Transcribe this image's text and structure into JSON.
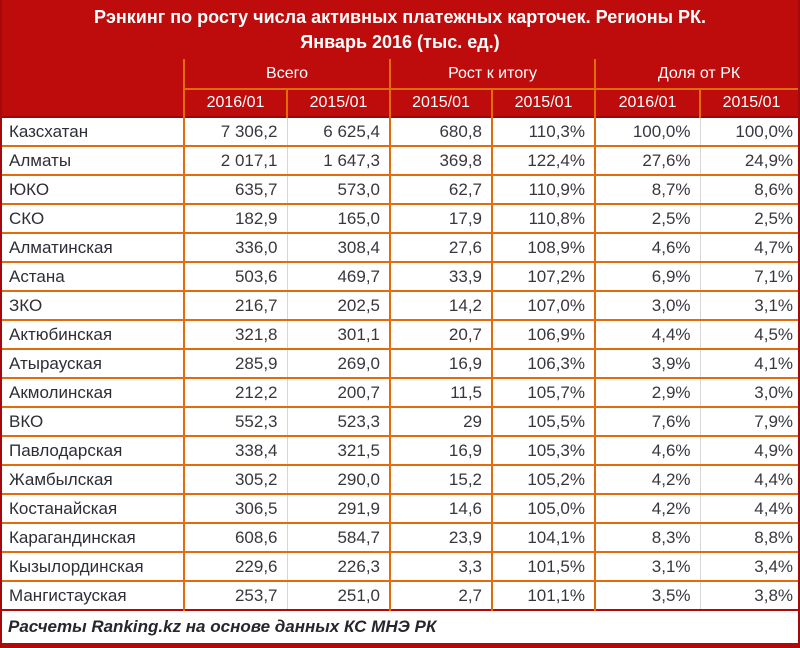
{
  "title": {
    "line1": "Рэнкинг по росту числа активных платежных карточек. Регионы РК.",
    "line2": "Январь 2016 (тыс. ед.)"
  },
  "table": {
    "groups": [
      "Всего",
      "Рост к итогу",
      "Доля от РК"
    ],
    "subheaders": [
      "2016/01",
      "2015/01",
      "2015/01",
      "2015/01",
      "2016/01",
      "2015/01"
    ],
    "rows": [
      {
        "region": "Казсхатан",
        "values": [
          "7 306,2",
          "6 625,4",
          "680,8",
          "110,3%",
          "100,0%",
          "100,0%"
        ]
      },
      {
        "region": "Алматы",
        "values": [
          "2 017,1",
          "1 647,3",
          "369,8",
          "122,4%",
          "27,6%",
          "24,9%"
        ]
      },
      {
        "region": "ЮКО",
        "values": [
          "635,7",
          "573,0",
          "62,7",
          "110,9%",
          "8,7%",
          "8,6%"
        ]
      },
      {
        "region": "СКО",
        "values": [
          "182,9",
          "165,0",
          "17,9",
          "110,8%",
          "2,5%",
          "2,5%"
        ]
      },
      {
        "region": "Алматинская",
        "values": [
          "336,0",
          "308,4",
          "27,6",
          "108,9%",
          "4,6%",
          "4,7%"
        ]
      },
      {
        "region": "Астана",
        "values": [
          "503,6",
          "469,7",
          "33,9",
          "107,2%",
          "6,9%",
          "7,1%"
        ]
      },
      {
        "region": "ЗКО",
        "values": [
          "216,7",
          "202,5",
          "14,2",
          "107,0%",
          "3,0%",
          "3,1%"
        ]
      },
      {
        "region": "Актюбинская",
        "values": [
          "321,8",
          "301,1",
          "20,7",
          "106,9%",
          "4,4%",
          "4,5%"
        ]
      },
      {
        "region": "Атырауская",
        "values": [
          "285,9",
          "269,0",
          "16,9",
          "106,3%",
          "3,9%",
          "4,1%"
        ]
      },
      {
        "region": "Акмолинская",
        "values": [
          "212,2",
          "200,7",
          "11,5",
          "105,7%",
          "2,9%",
          "3,0%"
        ]
      },
      {
        "region": "ВКО",
        "values": [
          "552,3",
          "523,3",
          "29",
          "105,5%",
          "7,6%",
          "7,9%"
        ]
      },
      {
        "region": "Павлодарская",
        "values": [
          "338,4",
          "321,5",
          "16,9",
          "105,3%",
          "4,6%",
          "4,9%"
        ]
      },
      {
        "region": "Жамбылская",
        "values": [
          "305,2",
          "290,0",
          "15,2",
          "105,2%",
          "4,2%",
          "4,4%"
        ]
      },
      {
        "region": "Костанайская",
        "values": [
          "306,5",
          "291,9",
          "14,6",
          "105,0%",
          "4,2%",
          "4,4%"
        ]
      },
      {
        "region": "Карагандинская",
        "values": [
          "608,6",
          "584,7",
          "23,9",
          "104,1%",
          "8,3%",
          "8,8%"
        ]
      },
      {
        "region": "Кызылординская",
        "values": [
          "229,6",
          "226,3",
          "3,3",
          "101,5%",
          "3,1%",
          "3,4%"
        ]
      },
      {
        "region": "Мангистауская",
        "values": [
          "253,7",
          "251,0",
          "2,7",
          "101,1%",
          "3,5%",
          "3,8%"
        ]
      }
    ]
  },
  "footer": {
    "text": "Расчеты Ranking.kz на основе данных КС МНЭ РК"
  },
  "colors": {
    "header_red": "#BE0B0B",
    "border_orange": "#E26B0A",
    "border_gray": "#D6D6D6",
    "border_dark_red": "#A50909",
    "text_dark": "#37373F"
  }
}
